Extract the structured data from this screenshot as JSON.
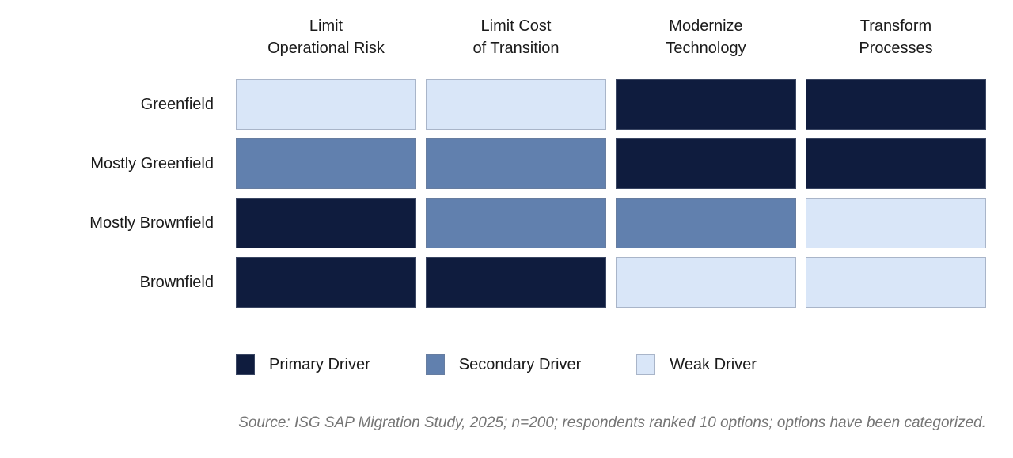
{
  "colors": {
    "primary": "#0F1C3E",
    "secondary": "#6180AE",
    "weak": "#D9E6F8",
    "label_text": "#1A1A1A",
    "source_text": "#757575",
    "background": "#FFFFFF"
  },
  "chart_data": {
    "type": "heatmap",
    "columns": [
      "Limit\nOperational Risk",
      "Limit Cost\nof Transition",
      "Modernize\nTechnology",
      "Transform\nProcesses"
    ],
    "rows": [
      "Greenfield",
      "Mostly Greenfield",
      "Mostly Brownfield",
      "Brownfield"
    ],
    "levels": [
      "primary",
      "secondary",
      "weak"
    ],
    "matrix": [
      [
        "weak",
        "weak",
        "primary",
        "primary"
      ],
      [
        "secondary",
        "secondary",
        "primary",
        "primary"
      ],
      [
        "primary",
        "secondary",
        "secondary",
        "weak"
      ],
      [
        "primary",
        "primary",
        "weak",
        "weak"
      ]
    ],
    "legend": [
      {
        "label": "Primary Driver",
        "level": "primary"
      },
      {
        "label": "Secondary Driver",
        "level": "secondary"
      },
      {
        "label": "Weak Driver",
        "level": "weak"
      }
    ],
    "legend_position": "bottom",
    "source": "Source: ISG SAP Migration Study, 2025; n=200; respondents ranked 10 options; options have been categorized."
  }
}
